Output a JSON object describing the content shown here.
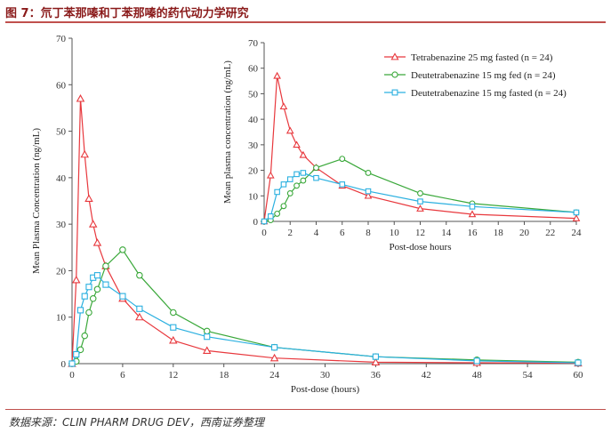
{
  "figure": {
    "title": "图 7：氘丁苯那嗪和丁苯那嗪的药代动力学研究",
    "source": "数据来源：CLIN PHARM DRUG DEV，西南证券整理"
  },
  "colors": {
    "tetrabenazine": "#e8383d",
    "deut_fed": "#3aa83a",
    "deut_fasted": "#2bb0e0",
    "accent": "#c0504d"
  },
  "chart_data": [
    {
      "type": "line",
      "xlabel": "Post-dose (hours)",
      "ylabel": "Mean Plasma Concentration (ng/mL)",
      "xlim": [
        0,
        60
      ],
      "ylim": [
        0,
        70
      ],
      "xticks": [
        0,
        6,
        12,
        18,
        24,
        30,
        36,
        42,
        48,
        54,
        60
      ],
      "yticks": [
        0,
        10,
        20,
        30,
        40,
        50,
        60,
        70
      ],
      "series": [
        {
          "name": "Tetrabenazine 25 mg fasted (n = 24)",
          "marker": "triangle",
          "x": [
            0,
            0.5,
            1,
            1.5,
            2,
            2.5,
            3,
            4,
            6,
            8,
            12,
            16,
            24,
            36,
            48,
            60
          ],
          "y": [
            0,
            18,
            57,
            45,
            35.5,
            30,
            26,
            21,
            14,
            10,
            5,
            2.8,
            1.2,
            0.3,
            0.2,
            0.1
          ]
        },
        {
          "name": "Deutetrabenazine 15 mg fed (n = 24)",
          "marker": "circle",
          "x": [
            0,
            0.5,
            1,
            1.5,
            2,
            2.5,
            3,
            4,
            6,
            8,
            12,
            16,
            24,
            36,
            48,
            60
          ],
          "y": [
            0,
            0.5,
            3,
            6,
            11,
            14,
            16,
            21,
            24.5,
            19,
            11,
            7,
            3.5,
            1.5,
            0.8,
            0.3
          ]
        },
        {
          "name": "Deutetrabenazine 15 mg fasted (n = 24)",
          "marker": "square",
          "x": [
            0,
            0.5,
            1,
            1.5,
            2,
            2.5,
            3,
            4,
            6,
            8,
            12,
            16,
            24,
            36,
            48,
            60
          ],
          "y": [
            0,
            2,
            11.5,
            14.5,
            16.5,
            18.5,
            19,
            17,
            14.5,
            11.8,
            7.8,
            5.8,
            3.5,
            1.5,
            0.6,
            0.2
          ]
        }
      ]
    },
    {
      "type": "line",
      "xlabel": "Post-dose hours",
      "ylabel": "Mean plasma concentration (ng/mL)",
      "xlim": [
        0,
        24
      ],
      "ylim": [
        0,
        70
      ],
      "xticks": [
        0,
        2,
        4,
        6,
        8,
        10,
        12,
        14,
        16,
        18,
        20,
        22,
        24
      ],
      "yticks": [
        0,
        10,
        20,
        30,
        40,
        50,
        60,
        70
      ],
      "legend": "top-right",
      "series": [
        {
          "name": "Tetrabenazine 25 mg fasted (n = 24)",
          "marker": "triangle",
          "x": [
            0,
            0.5,
            1,
            1.5,
            2,
            2.5,
            3,
            4,
            6,
            8,
            12,
            16,
            24
          ],
          "y": [
            0,
            18,
            57,
            45,
            35.5,
            30,
            26,
            21,
            14,
            10,
            5,
            2.8,
            1.2
          ]
        },
        {
          "name": "Deutetrabenazine 15 mg fed (n = 24)",
          "marker": "circle",
          "x": [
            0,
            0.5,
            1,
            1.5,
            2,
            2.5,
            3,
            4,
            6,
            8,
            12,
            16,
            24
          ],
          "y": [
            0,
            0.5,
            3,
            6,
            11,
            14,
            16,
            21,
            24.5,
            19,
            11,
            7,
            3.5
          ]
        },
        {
          "name": "Deutetrabenazine 15 mg fasted (n = 24)",
          "marker": "square",
          "x": [
            0,
            0.5,
            1,
            1.5,
            2,
            2.5,
            3,
            4,
            6,
            8,
            12,
            16,
            24
          ],
          "y": [
            0,
            2,
            11.5,
            14.5,
            16.5,
            18.5,
            19,
            17,
            14.5,
            11.8,
            7.8,
            5.8,
            3.5
          ]
        }
      ]
    }
  ]
}
